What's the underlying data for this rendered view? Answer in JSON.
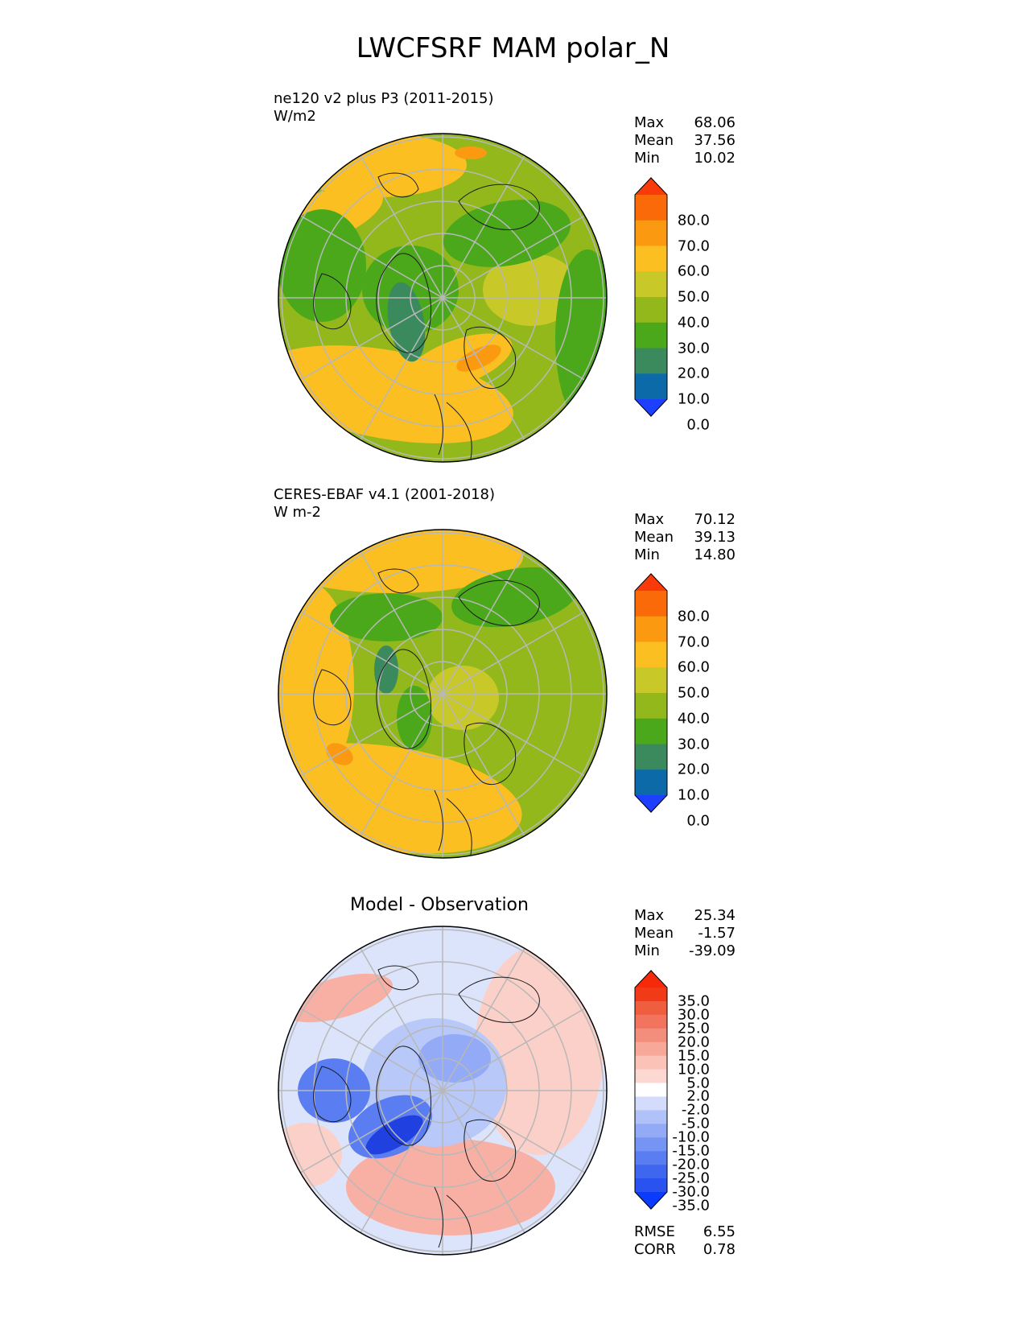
{
  "title": "LWCFSRF MAM polar_N",
  "panels": [
    {
      "name": "test",
      "line1": "ne120 v2 plus P3 (2011-2015)",
      "line2": "W/m2",
      "stats": [
        {
          "label": "Max",
          "value": "68.06"
        },
        {
          "label": "Mean",
          "value": "37.56"
        },
        {
          "label": "Min",
          "value": "10.02"
        }
      ]
    },
    {
      "name": "reference",
      "line1": "CERES-EBAF v4.1 (2001-2018)",
      "line2": "W m-2",
      "stats": [
        {
          "label": "Max",
          "value": "70.12"
        },
        {
          "label": "Mean",
          "value": "39.13"
        },
        {
          "label": "Min",
          "value": "14.80"
        }
      ]
    },
    {
      "name": "diff",
      "line1": "Model - Observation",
      "stats": [
        {
          "label": "Max",
          "value": "25.34"
        },
        {
          "label": "Mean",
          "value": "-1.57"
        },
        {
          "label": "Min",
          "value": "-39.09"
        }
      ],
      "metrics": [
        {
          "label": "RMSE",
          "value": "6.55"
        },
        {
          "label": "CORR",
          "value": "0.78"
        }
      ]
    }
  ],
  "colorbar_main": {
    "labels": [
      "80.0",
      "70.0",
      "60.0",
      "50.0",
      "40.0",
      "30.0",
      "20.0",
      "10.0",
      "0.0"
    ],
    "colors": [
      "#1d3fff",
      "#0c6aa8",
      "#3a8a5e",
      "#4aa81a",
      "#92b81c",
      "#c8c828",
      "#fbbf22",
      "#fb9a10",
      "#fb6a08",
      "#fb3a0a"
    ]
  },
  "colorbar_diff": {
    "labels": [
      "35.0",
      "30.0",
      "25.0",
      "20.0",
      "15.0",
      "10.0",
      "5.0",
      "2.0",
      "-2.0",
      "-5.0",
      "-10.0",
      "-15.0",
      "-20.0",
      "-25.0",
      "-30.0",
      "-35.0"
    ],
    "colors": [
      "#0a3cff",
      "#2a52f0",
      "#3f66ee",
      "#5a7ef2",
      "#7694f4",
      "#93aaf6",
      "#b0c2f8",
      "#d3dcfa",
      "#ffffff",
      "#fbd8d2",
      "#fbc2b8",
      "#f8a898",
      "#f48e7c",
      "#f2745e",
      "#f05e40",
      "#f03a18",
      "#f52a0a"
    ]
  },
  "map_colors": {
    "yellow": "#fbbf22",
    "olive": "#92b81c",
    "khaki": "#c8c828",
    "green": "#4aa81a",
    "teal": "#3a8a5e",
    "orange": "#fb9a10",
    "pink": "#f8b0a4",
    "lightred": "#fbd0c8",
    "blue": "#5a7ef2",
    "lightblue": "#b8c8f8",
    "darkblue": "#2040e0"
  }
}
